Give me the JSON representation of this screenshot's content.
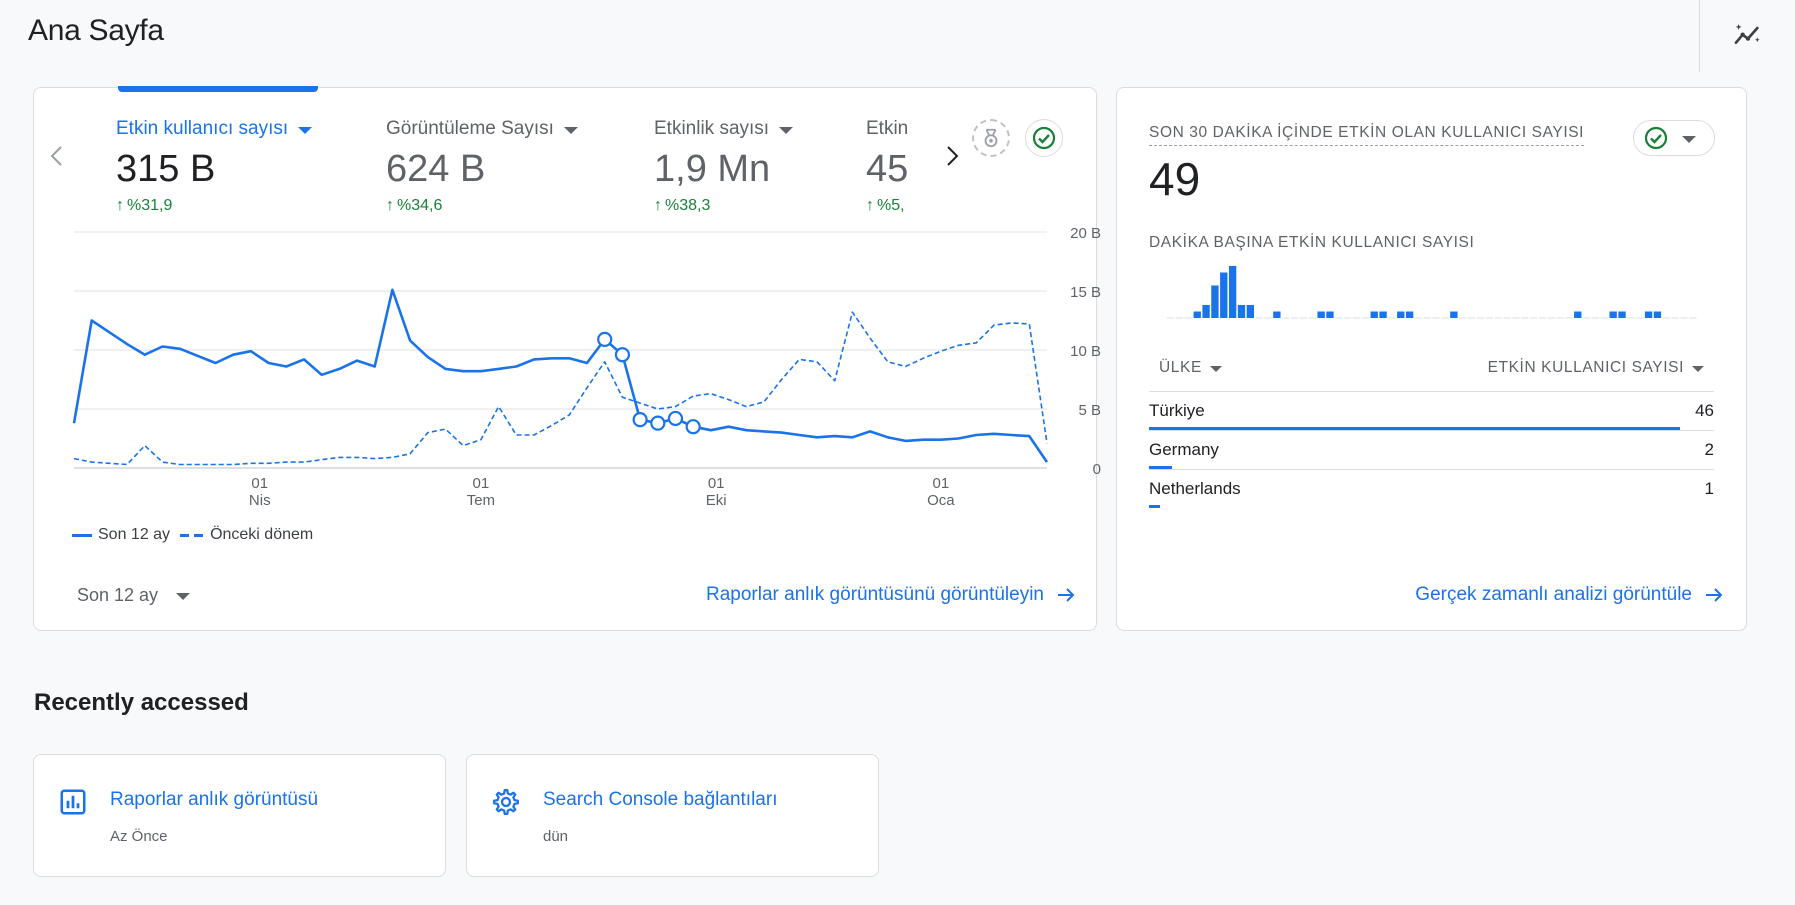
{
  "page": {
    "title": "Ana Sayfa"
  },
  "summary_card": {
    "metrics": [
      {
        "label": "Etkin kullanıcı sayısı",
        "value": "315 B",
        "delta": "%31,9",
        "active": true
      },
      {
        "label": "Görüntüleme Sayısı",
        "value": "624 B",
        "delta": "%34,6",
        "active": false
      },
      {
        "label": "Etkinlik sayısı",
        "value": "1,9 Mn",
        "delta": "%38,3",
        "active": false
      },
      {
        "label": "Etkin",
        "value": "45",
        "delta": "%5,",
        "active": false
      }
    ],
    "period": "Son 12 ay",
    "link": "Raporlar anlık görüntüsünü görüntüleyin"
  },
  "chart_data": {
    "type": "line",
    "y_ticks": [
      "20 B",
      "15 B",
      "10 B",
      "5 B",
      "0"
    ],
    "ylim": [
      0,
      20
    ],
    "x_ticks": [
      {
        "day": "01",
        "month": "Nis",
        "at": 10.5
      },
      {
        "day": "01",
        "month": "Tem",
        "at": 23
      },
      {
        "day": "01",
        "month": "Eki",
        "at": 36.3
      },
      {
        "day": "01",
        "month": "Oca",
        "at": 49
      }
    ],
    "series": [
      {
        "name": "Son 12 ay",
        "style": "solid",
        "values": [
          3.8,
          12.5,
          11.5,
          10.5,
          9.6,
          10.3,
          10.1,
          9.5,
          8.9,
          9.6,
          9.9,
          8.9,
          8.6,
          9.2,
          7.9,
          8.4,
          9.1,
          8.6,
          15.1,
          10.8,
          9.4,
          8.4,
          8.2,
          8.2,
          8.4,
          8.6,
          9.2,
          9.3,
          9.3,
          8.9,
          10.9,
          9.6,
          4.1,
          3.8,
          4.2,
          3.5,
          3.2,
          3.5,
          3.2,
          3.1,
          3.0,
          2.8,
          2.6,
          2.7,
          2.6,
          3.1,
          2.6,
          2.3,
          2.4,
          2.4,
          2.5,
          2.8,
          2.9,
          2.8,
          2.7,
          0.5
        ],
        "markers": [
          30,
          31,
          32,
          33,
          34,
          35
        ]
      },
      {
        "name": "Önceki dönem",
        "style": "dashed",
        "values": [
          0.8,
          0.5,
          0.4,
          0.3,
          1.9,
          0.5,
          0.3,
          0.3,
          0.3,
          0.3,
          0.4,
          0.4,
          0.5,
          0.5,
          0.7,
          0.9,
          0.9,
          0.8,
          0.9,
          1.2,
          3.0,
          3.3,
          1.9,
          2.4,
          5.2,
          2.8,
          2.8,
          3.6,
          4.5,
          6.8,
          9.0,
          6.0,
          5.5,
          5.0,
          5.2,
          6.1,
          6.3,
          5.8,
          5.2,
          5.6,
          7.5,
          9.2,
          9.0,
          7.4,
          13.2,
          11.0,
          9.0,
          8.6,
          9.3,
          9.9,
          10.4,
          10.6,
          12.1,
          12.3,
          12.2,
          2.1
        ],
        "markers": []
      }
    ],
    "legend": [
      "Son 12 ay",
      "Önceki dönem"
    ],
    "grid": true
  },
  "realtime_card": {
    "title": "SON 30 DAKİKA İÇİNDE ETKİN OLAN KULLANICI SAYISI",
    "value": "49",
    "sub_title": "DAKİKA BAŞINA ETKİN KULLANICI SAYISI",
    "per_minute": [
      0,
      0,
      0,
      1,
      2,
      5,
      7,
      8,
      2,
      2,
      0,
      0,
      1,
      0,
      0,
      0,
      0,
      1,
      1,
      0,
      0,
      0,
      0,
      1,
      1,
      0,
      1,
      1,
      0,
      0,
      0,
      0,
      1,
      0,
      0,
      0,
      0,
      0,
      0,
      0,
      0,
      0,
      0,
      0,
      0,
      0,
      1,
      0,
      0,
      0,
      1,
      1,
      0,
      0,
      1,
      1,
      0,
      0,
      0,
      0
    ],
    "columns": {
      "country": "ÜLKE",
      "users": "ETKİN KULLANICI SAYISI"
    },
    "rows": [
      {
        "country": "Türkiye",
        "users": "46",
        "share": 0.94
      },
      {
        "country": "Germany",
        "users": "2",
        "share": 0.04
      },
      {
        "country": "Netherlands",
        "users": "1",
        "share": 0.02
      }
    ],
    "link": "Gerçek zamanlı analizi görüntüle"
  },
  "recent": {
    "title": "Recently accessed",
    "items": [
      {
        "title": "Raporlar anlık görüntüsü",
        "subtitle": "Az Önce",
        "icon": "bar-chart-icon"
      },
      {
        "title": "Search Console bağlantıları",
        "subtitle": "dün",
        "icon": "gear-icon"
      }
    ]
  },
  "colors": {
    "accent": "#1a73e8",
    "positive": "#188038"
  }
}
